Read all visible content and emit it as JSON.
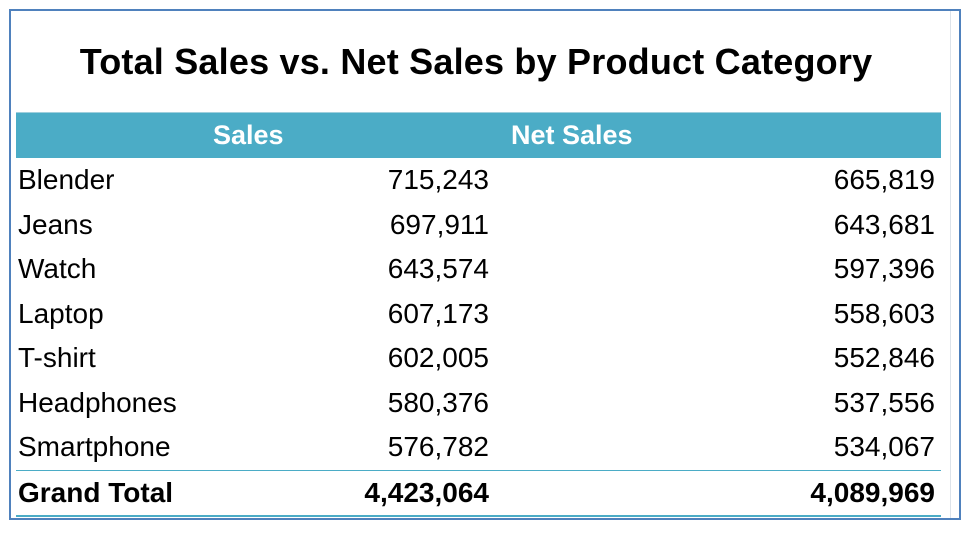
{
  "title": "Total Sales vs. Net Sales by Product Category",
  "headers": {
    "sales": "Sales",
    "net_sales": "Net Sales"
  },
  "rows": [
    {
      "category": "Blender",
      "sales": "715,243",
      "net_sales": "665,819"
    },
    {
      "category": "Jeans",
      "sales": "697,911",
      "net_sales": "643,681"
    },
    {
      "category": "Watch",
      "sales": "643,574",
      "net_sales": "597,396"
    },
    {
      "category": "Laptop",
      "sales": "607,173",
      "net_sales": "558,603"
    },
    {
      "category": "T-shirt",
      "sales": "602,005",
      "net_sales": "552,846"
    },
    {
      "category": "Headphones",
      "sales": "580,376",
      "net_sales": "537,556"
    },
    {
      "category": "Smartphone",
      "sales": "576,782",
      "net_sales": "534,067"
    }
  ],
  "total": {
    "label": "Grand Total",
    "sales": "4,423,064",
    "net_sales": "4,089,969"
  },
  "colors": {
    "header_bg": "#4bacc6",
    "header_text": "#ffffff",
    "frame_border": "#4f81bd"
  }
}
